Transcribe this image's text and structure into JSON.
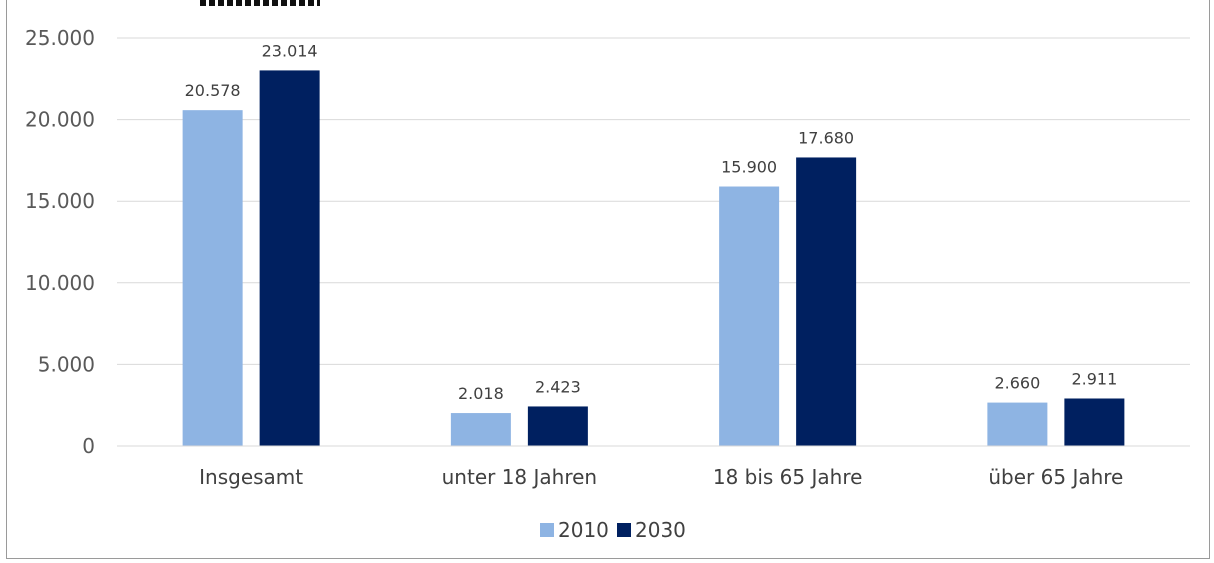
{
  "chart_data": {
    "type": "bar",
    "categories": [
      "Insgesamt",
      "unter 18 Jahren",
      "18 bis 65 Jahre",
      "über 65 Jahre"
    ],
    "series": [
      {
        "name": "2010",
        "values": [
          20578,
          2018,
          15900,
          2660
        ],
        "color": "#8eb4e3"
      },
      {
        "name": "2030",
        "values": [
          23014,
          2423,
          17680,
          2911
        ],
        "color": "#002060"
      }
    ],
    "data_labels": [
      [
        "20.578",
        "2.018",
        "15.900",
        "2.660"
      ],
      [
        "23.014",
        "2.423",
        "17.680",
        "2.911"
      ]
    ],
    "y_ticks": [
      0,
      5000,
      10000,
      15000,
      20000,
      25000
    ],
    "y_tick_labels": [
      "0",
      "5.000",
      "10.000",
      "15.000",
      "20.000",
      "25.000"
    ],
    "ylim": [
      0,
      25000
    ],
    "grid": true,
    "legend_position": "bottom",
    "gridline_color": "#d9d9d9"
  }
}
